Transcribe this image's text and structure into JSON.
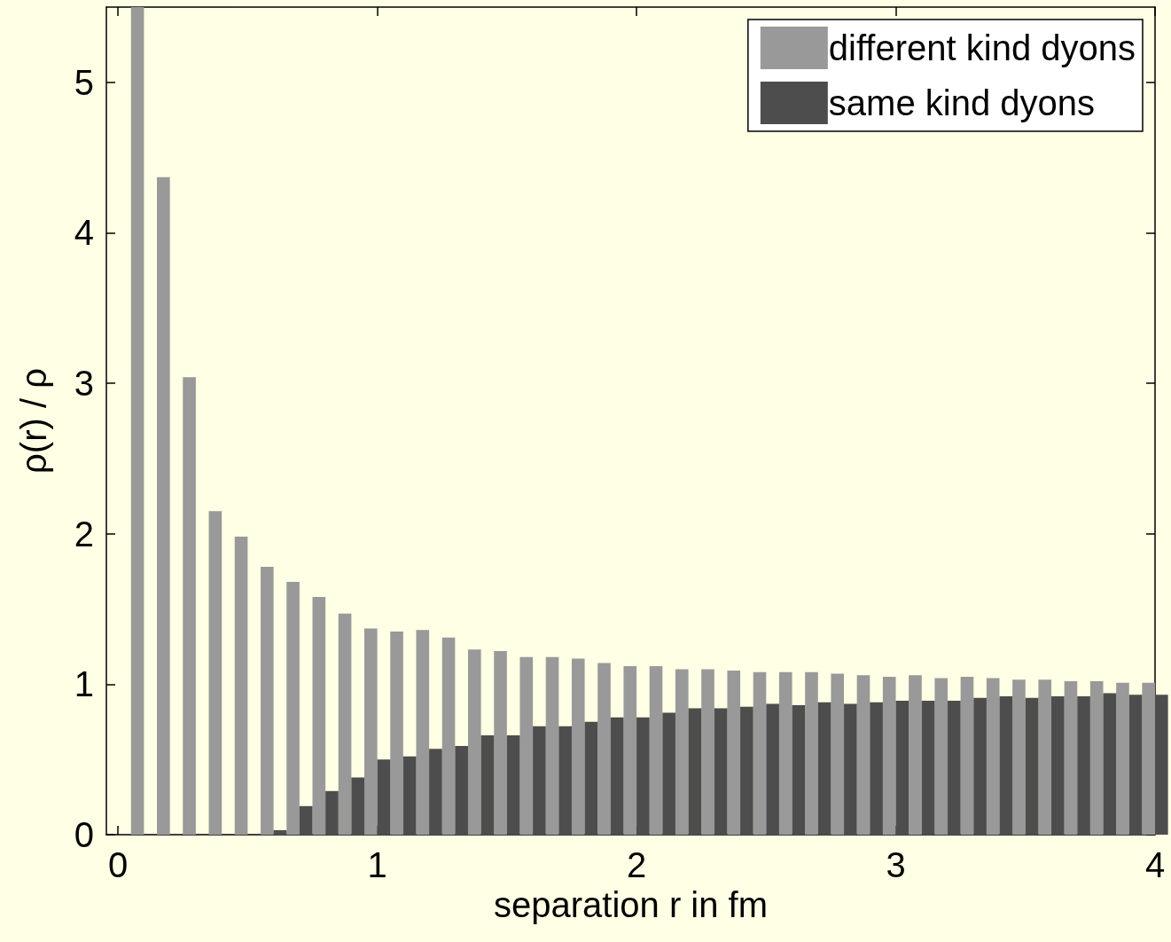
{
  "chart_data": {
    "type": "bar",
    "xlabel": "separation r in fm",
    "ylabel": "ρ(r) / ρ",
    "x": [
      0.1,
      0.2,
      0.3,
      0.4,
      0.5,
      0.6,
      0.7,
      0.8,
      0.9,
      1.0,
      1.1,
      1.2,
      1.3,
      1.4,
      1.5,
      1.6,
      1.7,
      1.8,
      1.9,
      2.0,
      2.1,
      2.2,
      2.3,
      2.4,
      2.5,
      2.6,
      2.7,
      2.8,
      2.9,
      3.0,
      3.1,
      3.2,
      3.3,
      3.4,
      3.5,
      3.6,
      3.7,
      3.8,
      3.9,
      4.0
    ],
    "series": [
      {
        "name": "different kind dyons",
        "color": "#999999",
        "values": [
          5.5,
          4.37,
          3.04,
          2.15,
          1.98,
          1.78,
          1.68,
          1.58,
          1.47,
          1.37,
          1.35,
          1.36,
          1.31,
          1.23,
          1.22,
          1.18,
          1.18,
          1.17,
          1.14,
          1.12,
          1.12,
          1.1,
          1.1,
          1.09,
          1.08,
          1.08,
          1.08,
          1.07,
          1.06,
          1.05,
          1.06,
          1.04,
          1.05,
          1.04,
          1.03,
          1.03,
          1.02,
          1.02,
          1.01,
          1.01
        ]
      },
      {
        "name": "same kind dyons",
        "color": "#4d4d4d",
        "values": [
          0,
          0,
          0,
          0,
          0,
          0.03,
          0.19,
          0.29,
          0.38,
          0.5,
          0.52,
          0.57,
          0.59,
          0.66,
          0.66,
          0.72,
          0.72,
          0.75,
          0.78,
          0.78,
          0.81,
          0.84,
          0.84,
          0.85,
          0.87,
          0.86,
          0.88,
          0.87,
          0.88,
          0.89,
          0.89,
          0.89,
          0.91,
          0.92,
          0.91,
          0.92,
          0.92,
          0.94,
          0.93,
          0.93
        ]
      }
    ],
    "xlim": [
      -0.045,
      4
    ],
    "xticks": [
      0,
      1,
      2,
      3,
      4
    ],
    "ylim": [
      0,
      5.5
    ],
    "yticks": [
      0,
      1,
      2,
      3,
      4,
      5
    ],
    "grid": false,
    "legend": "top right"
  }
}
